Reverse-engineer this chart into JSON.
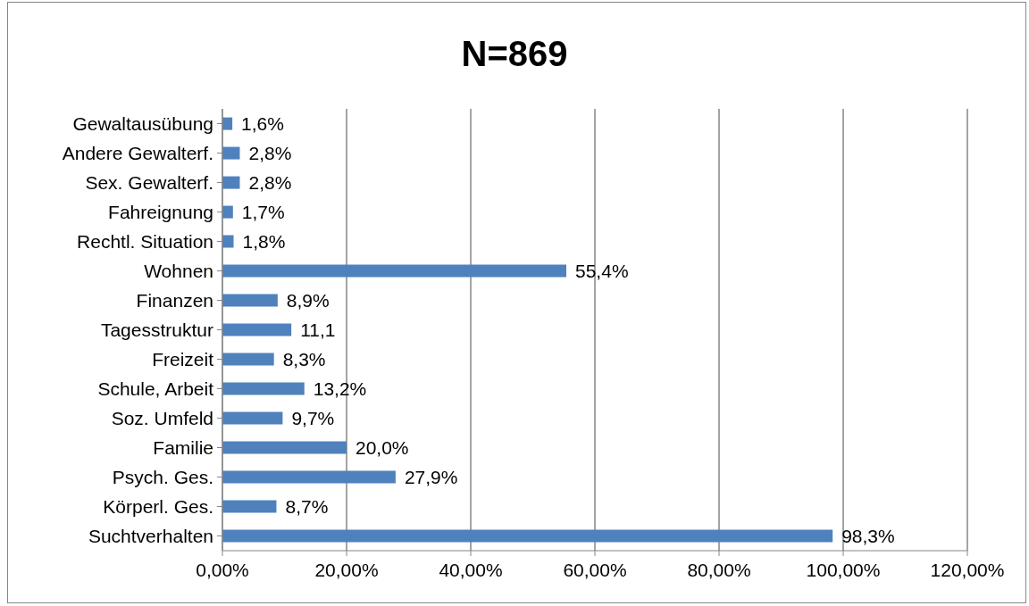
{
  "chart_data": {
    "type": "bar",
    "title": "N=869",
    "orientation": "horizontal",
    "categories": [
      "Gewaltausübung",
      "Andere Gewalterf.",
      "Sex. Gewalterf.",
      "Fahreignung",
      "Rechtl. Situation",
      "Wohnen",
      "Finanzen",
      "Tagesstruktur",
      "Freizeit",
      "Schule, Arbeit",
      "Soz. Umfeld",
      "Familie",
      "Psych. Ges.",
      "Körperl. Ges.",
      "Suchtverhalten"
    ],
    "values": [
      1.6,
      2.8,
      2.8,
      1.7,
      1.8,
      55.4,
      8.9,
      11.1,
      8.3,
      13.2,
      9.7,
      20.0,
      27.9,
      8.7,
      98.3
    ],
    "value_labels": [
      "1,6%",
      "2,8%",
      "2,8%",
      "1,7%",
      "1,8%",
      "55,4%",
      "8,9%",
      "11,1",
      "8,3%",
      "13,2%",
      "9,7%",
      "20,0%",
      "27,9%",
      "8,7%",
      "98,3%"
    ],
    "color": "#4f81bd",
    "xlim": [
      0,
      120
    ],
    "xticks": [
      {
        "value": 0,
        "label": "0,00%"
      },
      {
        "value": 20,
        "label": "20,00%"
      },
      {
        "value": 40,
        "label": "40,00%"
      },
      {
        "value": 60,
        "label": "60,00%"
      },
      {
        "value": 80,
        "label": "80,00%"
      },
      {
        "value": 100,
        "label": "100,00%"
      },
      {
        "value": 120,
        "label": "120,00%"
      }
    ],
    "grid": "x"
  }
}
